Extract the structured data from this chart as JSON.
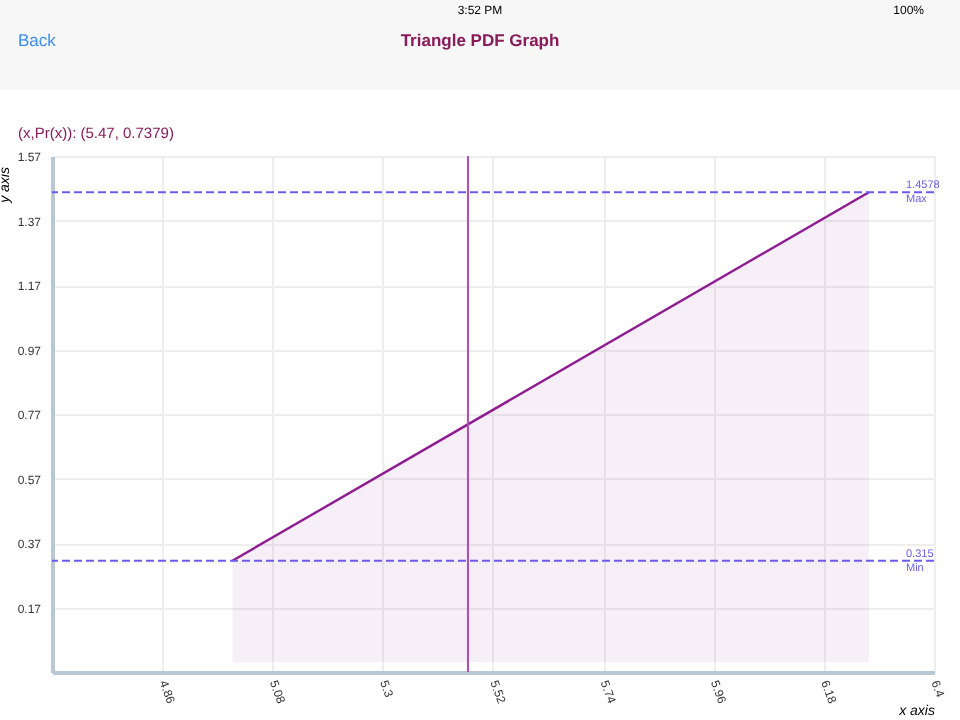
{
  "chart_data": {
    "type": "area",
    "title": "Triangle PDF Graph",
    "xlabel": "x axis",
    "ylabel": "y axis",
    "annotations": [
      "Back",
      "3:52 PM",
      "100%",
      "(x,Pr(x)): (5.47, 0.7379)"
    ],
    "x": [
      5.0,
      6.27
    ],
    "series": [
      {
        "color": "#8e1b91",
        "values": [
          0.315,
          1.4578
        ]
      }
    ],
    "xlim": [
      4.64,
      6.4
    ],
    "xticks": [
      4.86,
      5.08,
      5.3,
      5.52,
      5.74,
      5.96,
      6.18,
      6.4
    ],
    "ylim": [
      -0.03,
      1.57
    ],
    "yticks": [
      0.17,
      0.37,
      0.57,
      0.77,
      0.97,
      1.17,
      1.37,
      1.57
    ],
    "ref_lines": [
      {
        "axis": "y",
        "value": 1.4578,
        "label": "1.4578\nMax",
        "color": "#6a5cf0",
        "line_style": "dashed"
      },
      {
        "axis": "y",
        "value": 0.315,
        "label": "0.315\nMin",
        "color": "#6a5cf0",
        "line_style": "dashed"
      },
      {
        "axis": "x",
        "value": 5.47,
        "color": "#b04ab8",
        "line_style": "solid"
      }
    ],
    "grid": true,
    "marker": "none",
    "line_style": "solid"
  }
}
